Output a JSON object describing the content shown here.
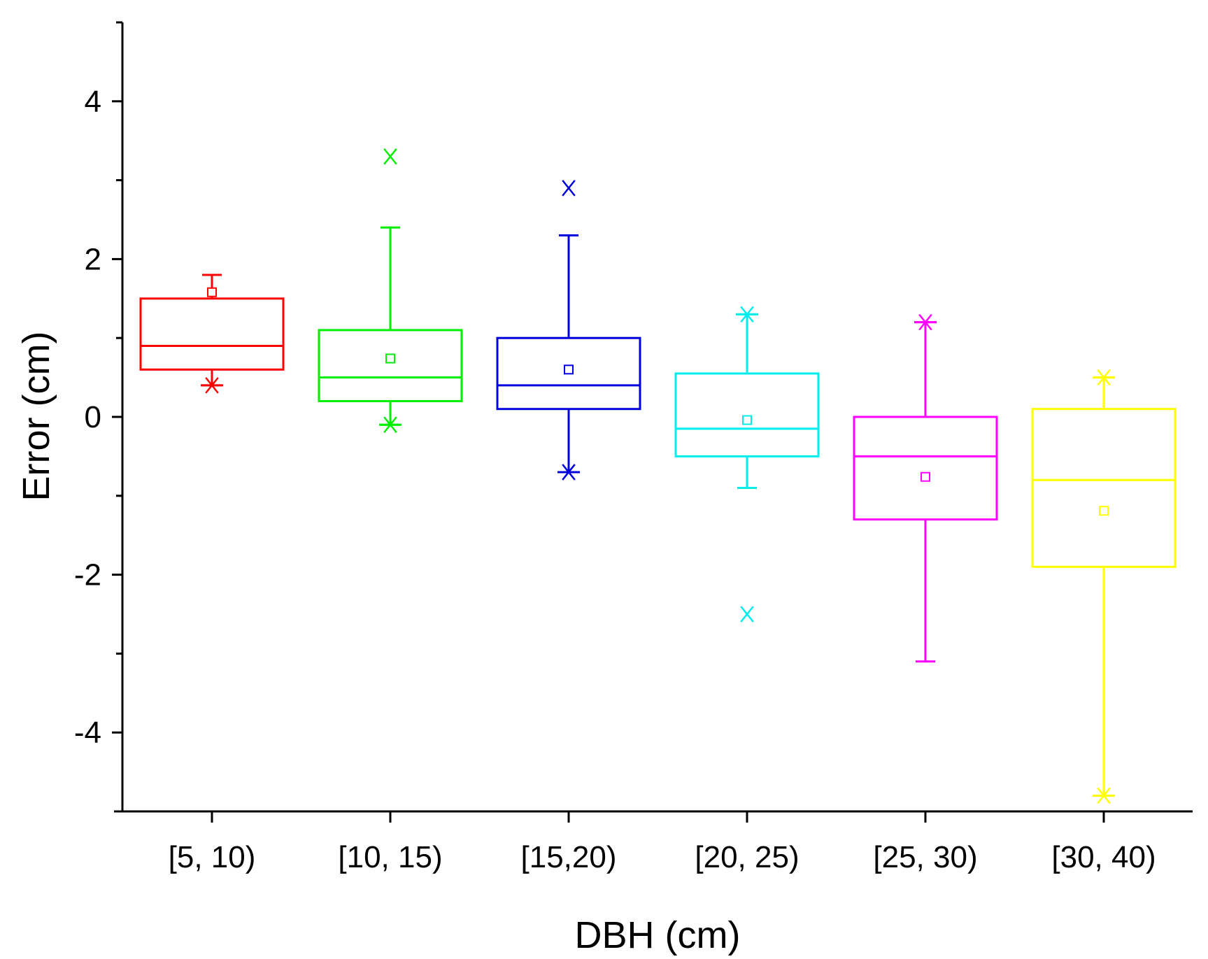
{
  "chart_data": {
    "type": "box",
    "title": "",
    "xlabel": "DBH (cm)",
    "ylabel": "Error (cm)",
    "ylim": [
      -5,
      5
    ],
    "yticks_major": [
      -4,
      -2,
      0,
      2,
      4
    ],
    "yticks_minor": [
      -5,
      -3,
      -1,
      1,
      3,
      5
    ],
    "ytick_labels": [
      "-4",
      "-2",
      "0",
      "2",
      "4"
    ],
    "categories": [
      "[5, 10)",
      "[10, 15)",
      "[15,20)",
      "[20, 25)",
      "[25, 30)",
      "[30, 40)"
    ],
    "boxes": [
      {
        "category": "[5, 10)",
        "color": "#ff0000",
        "whisker_low": 0.4,
        "q1": 0.6,
        "median": 0.9,
        "q3": 1.5,
        "whisker_high": 1.8,
        "mean": 1.58,
        "outliers": [],
        "extremes": [
          0.4
        ]
      },
      {
        "category": "[10, 15)",
        "color": "#00ee00",
        "whisker_low": -0.1,
        "q1": 0.2,
        "median": 0.5,
        "q3": 1.1,
        "whisker_high": 2.4,
        "mean": 0.74,
        "outliers": [
          3.3
        ],
        "extremes": [
          -0.1
        ]
      },
      {
        "category": "[15,20)",
        "color": "#0000dd",
        "whisker_low": -0.7,
        "q1": 0.1,
        "median": 0.4,
        "q3": 1.0,
        "whisker_high": 2.3,
        "mean": 0.6,
        "outliers": [
          2.9
        ],
        "extremes": [
          -0.7
        ]
      },
      {
        "category": "[20, 25)",
        "color": "#00eeee",
        "whisker_low": -0.9,
        "q1": -0.5,
        "median": -0.15,
        "q3": 0.55,
        "whisker_high": 1.3,
        "mean": -0.04,
        "outliers": [
          -2.5
        ],
        "extremes": [
          1.3
        ]
      },
      {
        "category": "[25, 30)",
        "color": "#ff00ff",
        "whisker_low": -3.1,
        "q1": -1.3,
        "median": -0.5,
        "q3": 0.0,
        "whisker_high": 1.2,
        "mean": -0.76,
        "outliers": [],
        "extremes": [
          1.2
        ]
      },
      {
        "category": "[30, 40)",
        "color": "#ffff00",
        "whisker_low": -4.8,
        "q1": -1.9,
        "median": -0.8,
        "q3": 0.1,
        "whisker_high": 0.5,
        "mean": -1.19,
        "outliers": [],
        "extremes": [
          0.5,
          -4.8
        ]
      }
    ]
  }
}
